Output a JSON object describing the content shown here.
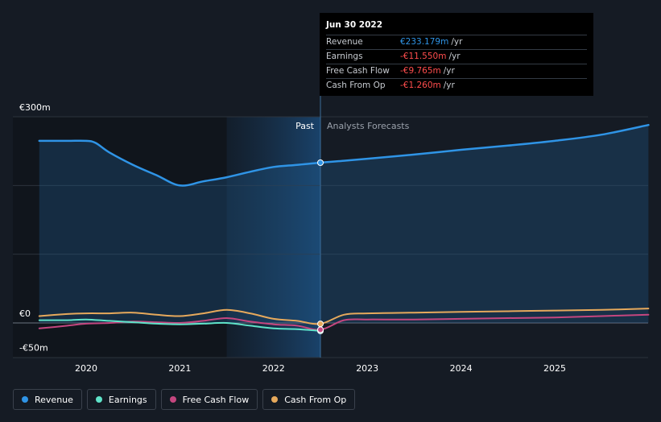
{
  "chart_data": {
    "type": "line",
    "y_unit": "€m",
    "ylim": [
      -50,
      300
    ],
    "y_tick_labels": [
      "€300m",
      "€0",
      "-€50m"
    ],
    "y_tick_values": [
      300,
      0,
      -50
    ],
    "xlim": [
      2019.5,
      2026
    ],
    "x_ticks": [
      2020,
      2021,
      2022,
      2023,
      2024,
      2025
    ],
    "x_tick_labels": [
      "2020",
      "2021",
      "2022",
      "2023",
      "2024",
      "2025"
    ],
    "past_label": "Past",
    "forecast_label": "Analysts Forecasts",
    "past_highlight_start": 2021.5,
    "divider_x": 2022.5,
    "grid": true,
    "legend_position": "bottom-left",
    "series": [
      {
        "name": "Revenue",
        "color": "#2f94e6",
        "area": true,
        "points": [
          [
            2019.5,
            265
          ],
          [
            2019.8,
            265
          ],
          [
            2020,
            265
          ],
          [
            2020.1,
            262
          ],
          [
            2020.25,
            248
          ],
          [
            2020.5,
            230
          ],
          [
            2020.75,
            215
          ],
          [
            2021,
            200
          ],
          [
            2021.25,
            206
          ],
          [
            2021.5,
            212
          ],
          [
            2021.75,
            220
          ],
          [
            2022,
            227
          ],
          [
            2022.25,
            230
          ],
          [
            2022.5,
            233.2
          ],
          [
            2022.75,
            236
          ],
          [
            2023,
            239
          ],
          [
            2023.5,
            245
          ],
          [
            2024,
            252
          ],
          [
            2024.5,
            258
          ],
          [
            2025,
            265
          ],
          [
            2025.5,
            274
          ],
          [
            2026,
            288
          ]
        ]
      },
      {
        "name": "Earnings",
        "color": "#5fe3c9",
        "area": false,
        "points": [
          [
            2019.5,
            4
          ],
          [
            2019.8,
            4
          ],
          [
            2020,
            5
          ],
          [
            2020.25,
            3
          ],
          [
            2020.5,
            1
          ],
          [
            2020.75,
            -1
          ],
          [
            2021,
            -2
          ],
          [
            2021.25,
            -1
          ],
          [
            2021.5,
            0
          ],
          [
            2021.75,
            -4
          ],
          [
            2022,
            -8
          ],
          [
            2022.25,
            -9
          ],
          [
            2022.5,
            -11.6
          ]
        ]
      },
      {
        "name": "Free Cash Flow",
        "color": "#c4467f",
        "area": false,
        "points": [
          [
            2019.5,
            -8
          ],
          [
            2019.8,
            -4
          ],
          [
            2020,
            -1
          ],
          [
            2020.25,
            0
          ],
          [
            2020.5,
            2
          ],
          [
            2020.75,
            1
          ],
          [
            2021,
            0
          ],
          [
            2021.25,
            3
          ],
          [
            2021.5,
            7
          ],
          [
            2021.75,
            2
          ],
          [
            2022,
            -2
          ],
          [
            2022.25,
            -4
          ],
          [
            2022.5,
            -9.8
          ],
          [
            2022.75,
            4
          ],
          [
            2023,
            5
          ],
          [
            2023.5,
            5
          ],
          [
            2024,
            6
          ],
          [
            2024.5,
            7
          ],
          [
            2025,
            8
          ],
          [
            2025.5,
            10
          ],
          [
            2026,
            12
          ]
        ]
      },
      {
        "name": "Cash From Op",
        "color": "#e6a95c",
        "area": false,
        "points": [
          [
            2019.5,
            10
          ],
          [
            2019.8,
            13
          ],
          [
            2020,
            14
          ],
          [
            2020.25,
            14
          ],
          [
            2020.5,
            15
          ],
          [
            2020.75,
            12
          ],
          [
            2021,
            10
          ],
          [
            2021.25,
            14
          ],
          [
            2021.5,
            19
          ],
          [
            2021.75,
            14
          ],
          [
            2022,
            6
          ],
          [
            2022.25,
            3
          ],
          [
            2022.5,
            -1.3
          ],
          [
            2022.75,
            12
          ],
          [
            2023,
            14
          ],
          [
            2023.5,
            15
          ],
          [
            2024,
            16
          ],
          [
            2024.5,
            17
          ],
          [
            2025,
            18
          ],
          [
            2025.5,
            19
          ],
          [
            2026,
            21
          ]
        ]
      }
    ]
  },
  "tooltip": {
    "date": "Jun 30 2022",
    "rows": [
      {
        "label": "Revenue",
        "value": "€233.179m",
        "unit": "/yr",
        "color": "#2f94e6"
      },
      {
        "label": "Earnings",
        "value": "-€11.550m",
        "unit": "/yr",
        "color": "#ff4d4d"
      },
      {
        "label": "Free Cash Flow",
        "value": "-€9.765m",
        "unit": "/yr",
        "color": "#ff4d4d"
      },
      {
        "label": "Cash From Op",
        "value": "-€1.260m",
        "unit": "/yr",
        "color": "#ff4d4d"
      }
    ]
  },
  "legend": [
    {
      "label": "Revenue",
      "color": "#2f94e6"
    },
    {
      "label": "Earnings",
      "color": "#5fe3c9"
    },
    {
      "label": "Free Cash Flow",
      "color": "#c4467f"
    },
    {
      "label": "Cash From Op",
      "color": "#e6a95c"
    }
  ]
}
